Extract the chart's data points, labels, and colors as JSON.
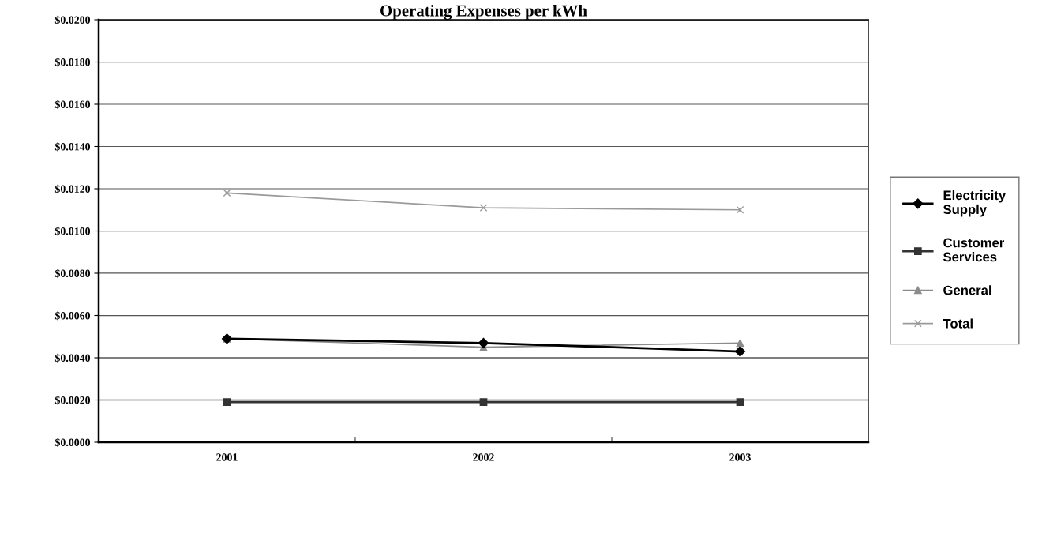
{
  "chart_data": {
    "type": "line",
    "title": "Operating Expenses per kWh",
    "categories": [
      "2001",
      "2002",
      "2003"
    ],
    "series": [
      {
        "name": "Electricity Supply",
        "color": "#000000",
        "marker": "diamond",
        "values": [
          0.0049,
          0.0047,
          0.0043
        ]
      },
      {
        "name": "Customer Services",
        "color": "#333333",
        "marker": "square",
        "values": [
          0.0019,
          0.0019,
          0.0019
        ]
      },
      {
        "name": "General",
        "color": "#8c8c8c",
        "marker": "triangle",
        "values": [
          0.0049,
          0.0045,
          0.0047
        ]
      },
      {
        "name": "Total",
        "color": "#9a9a9a",
        "marker": "cross",
        "values": [
          0.0118,
          0.0111,
          0.011
        ]
      }
    ],
    "ylim": [
      0,
      0.02
    ],
    "yticks": [
      {
        "value": 0,
        "label": "$0.0000"
      },
      {
        "value": 0.002,
        "label": "$0.0020"
      },
      {
        "value": 0.004,
        "label": "$0.0040"
      },
      {
        "value": 0.006,
        "label": "$0.0060"
      },
      {
        "value": 0.008,
        "label": "$0.0080"
      },
      {
        "value": 0.01,
        "label": "$0.0100"
      },
      {
        "value": 0.012,
        "label": "$0.0120"
      },
      {
        "value": 0.014,
        "label": "$0.0140"
      },
      {
        "value": 0.016,
        "label": "$0.0160"
      },
      {
        "value": 0.018,
        "label": "$0.0180"
      },
      {
        "value": 0.02,
        "label": "$0.0200"
      }
    ],
    "grid": "y",
    "legend": "right",
    "line_style": "solid"
  }
}
